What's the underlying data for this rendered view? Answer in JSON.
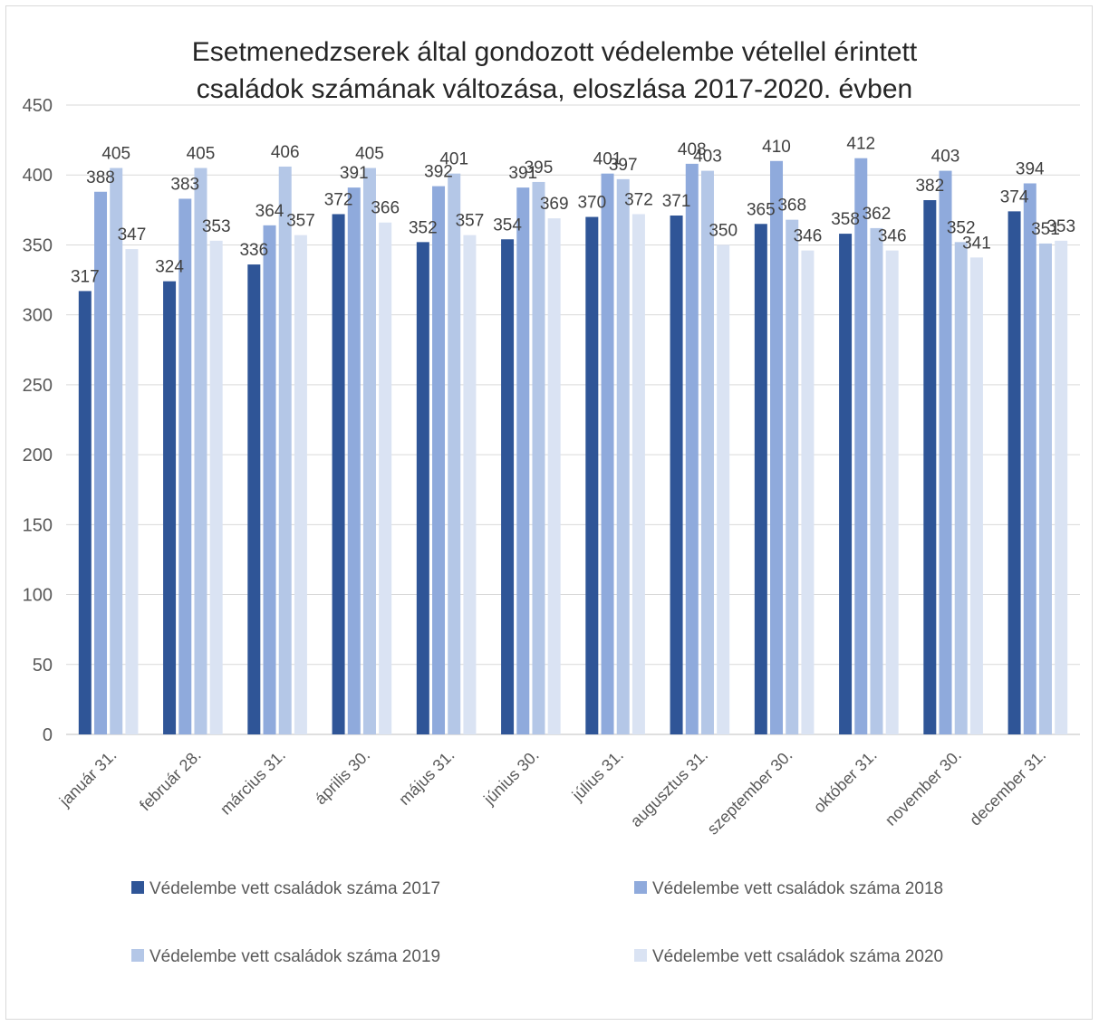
{
  "chart_data": {
    "type": "bar",
    "title_lines": [
      "Esetmenedzserek által gondozott védelembe vétellel érintett",
      "családok számának változása, eloszlása 2017-2020. évben"
    ],
    "categories": [
      "január 31.",
      "február 28.",
      "március 31.",
      "április 30.",
      "május 31.",
      "június 30.",
      "július 31.",
      "augusztus 31.",
      "szeptember 30.",
      "október 31.",
      "november 30.",
      "december 31."
    ],
    "series": [
      {
        "name": "Védelembe vett családok száma 2017",
        "color": "#2f5597",
        "values": [
          317,
          324,
          336,
          372,
          352,
          354,
          370,
          371,
          365,
          358,
          382,
          374
        ]
      },
      {
        "name": "Védelembe vett családok száma 2018",
        "color": "#8faadc",
        "values": [
          388,
          383,
          364,
          391,
          392,
          391,
          401,
          408,
          410,
          412,
          403,
          394
        ]
      },
      {
        "name": "Védelembe vett családok száma 2019",
        "color": "#b4c7e7",
        "values": [
          405,
          405,
          406,
          405,
          401,
          395,
          397,
          403,
          368,
          362,
          352,
          351
        ]
      },
      {
        "name": "Védelembe vett családok száma 2020",
        "color": "#dae3f3",
        "values": [
          347,
          353,
          357,
          366,
          357,
          369,
          372,
          350,
          346,
          346,
          341,
          353
        ]
      }
    ],
    "ylim": [
      0,
      450
    ],
    "yticks": [
      0,
      50,
      100,
      150,
      200,
      250,
      300,
      350,
      400,
      450
    ],
    "grid": true,
    "legend_position": "bottom",
    "xlabel": "",
    "ylabel": ""
  }
}
